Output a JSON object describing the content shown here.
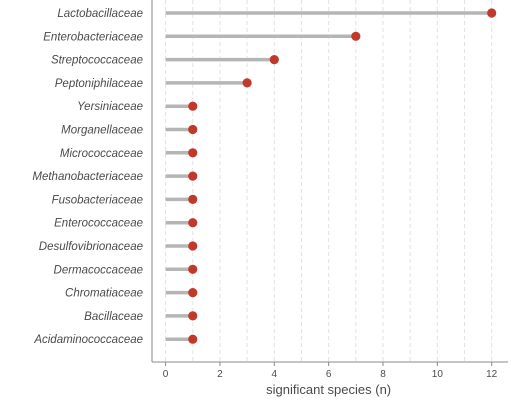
{
  "chart_data": {
    "type": "lollipop",
    "orientation": "horizontal",
    "title": "",
    "xlabel": "significant species (n)",
    "ylabel": "",
    "xlim": [
      -0.5,
      12.6
    ],
    "x_ticks": [
      0,
      2,
      4,
      6,
      8,
      10,
      12
    ],
    "grid": "vertical dashed at major and minor ticks",
    "legend": "none",
    "categories": [
      "Lactobacillaceae",
      "Enterobacteriaceae",
      "Streptococcaceae",
      "Peptoniphilaceae",
      "Yersiniaceae",
      "Morganellaceae",
      "Micrococcaceae",
      "Methanobacteriaceae",
      "Fusobacteriaceae",
      "Enterococcaceae",
      "Desulfovibrionaceae",
      "Dermacoccaceae",
      "Chromatiaceae",
      "Bacillaceae",
      "Acidaminococcaceae"
    ],
    "values": [
      12,
      7,
      4,
      3,
      1,
      1,
      1,
      1,
      1,
      1,
      1,
      1,
      1,
      1,
      1
    ],
    "colors": {
      "stem": "#b5b5b5",
      "point": "#c0392b",
      "grid": "#e2e2e2",
      "axis": "#8a8a8a",
      "text": "#4a4a4a"
    }
  }
}
